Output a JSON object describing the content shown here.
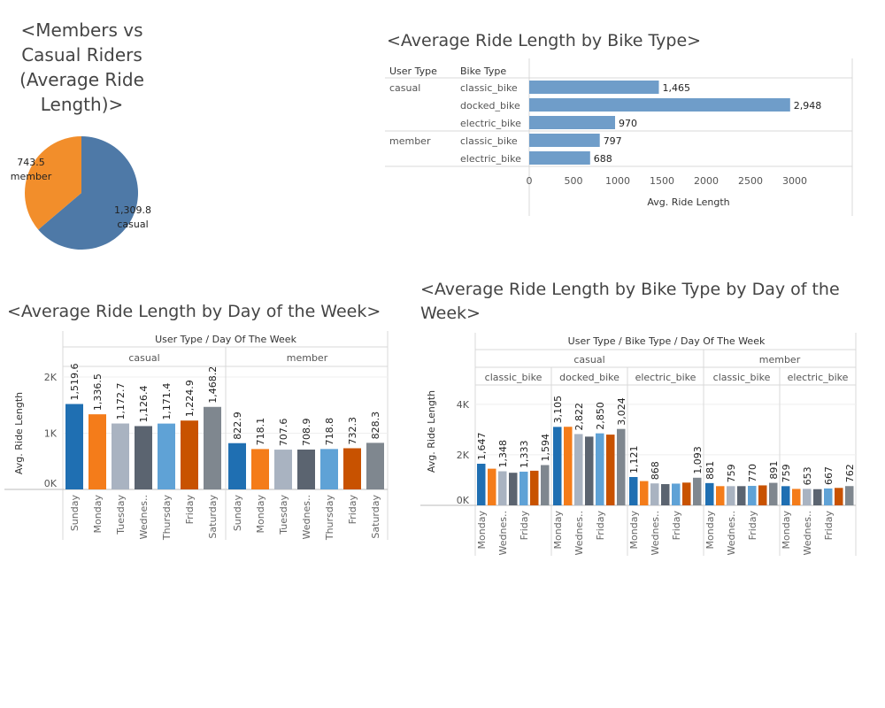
{
  "pie": {
    "title": "<Members vs Casual Riders (Average Ride Length)>",
    "chart_data": {
      "type": "pie",
      "slices": [
        {
          "label": "casual",
          "value": 1309.8,
          "value_label": "1,309.8",
          "color": "#4e79a7"
        },
        {
          "label": "member",
          "value": 743.5,
          "value_label": "743.5",
          "color": "#f28e2b"
        }
      ]
    }
  },
  "bike": {
    "title": "<Average Ride Length by Bike Type>",
    "header_user": "User Type",
    "header_bike": "Bike Type",
    "xlabel": "Avg. Ride Length",
    "chart_data": {
      "type": "bar",
      "orientation": "horizontal",
      "xlim": [
        0,
        3500
      ],
      "ticks": [
        "0",
        "500",
        "1000",
        "1500",
        "2000",
        "2500",
        "3000"
      ],
      "tick_values": [
        0,
        500,
        1000,
        1500,
        2000,
        2500,
        3000
      ],
      "groups": [
        {
          "user": "casual",
          "rows": [
            {
              "bike": "classic_bike",
              "value": 1465,
              "label": "1,465"
            },
            {
              "bike": "docked_bike",
              "value": 2948,
              "label": "2,948"
            },
            {
              "bike": "electric_bike",
              "value": 970,
              "label": "970"
            }
          ]
        },
        {
          "user": "member",
          "rows": [
            {
              "bike": "classic_bike",
              "value": 797,
              "label": "797"
            },
            {
              "bike": "electric_bike",
              "value": 688,
              "label": "688"
            }
          ]
        }
      ],
      "bar_color": "#6f9dc9"
    }
  },
  "dow": {
    "title": "<Average Ride Length by Day of the Week>",
    "header": "User Type  /  Day Of The Week",
    "ylabel": "Avg. Ride Length",
    "chart_data": {
      "type": "bar",
      "ylim": [
        0,
        2000
      ],
      "ticks": [
        "0K",
        "1K",
        "2K"
      ],
      "tick_values": [
        0,
        1000,
        2000
      ],
      "days": [
        "Sunday",
        "Monday",
        "Tuesday",
        "Wednes..",
        "Thursday",
        "Friday",
        "Saturday"
      ],
      "colors": [
        "#1f6fb2",
        "#f47c1a",
        "#a9b3c1",
        "#5b6470",
        "#5fa2d6",
        "#c85200",
        "#7f878f"
      ],
      "groups": [
        {
          "name": "casual",
          "values": [
            1519.6,
            1336.5,
            1172.7,
            1126.4,
            1171.4,
            1224.9,
            1468.2
          ],
          "labels": [
            "1,519.6",
            "1,336.5",
            "1,172.7",
            "1,126.4",
            "1,171.4",
            "1,224.9",
            "1,468.2"
          ]
        },
        {
          "name": "member",
          "values": [
            822.9,
            718.1,
            707.6,
            708.9,
            718.8,
            732.3,
            828.3
          ],
          "labels": [
            "822.9",
            "718.1",
            "707.6",
            "708.9",
            "718.8",
            "732.3",
            "828.3"
          ]
        }
      ]
    }
  },
  "bbd": {
    "title": "<Average Ride Length by Bike Type by Day of the Week>",
    "header": "User Type  /  Bike Type  /  Day Of The Week",
    "ylabel": "Avg. Ride Length",
    "chart_data": {
      "type": "bar",
      "ylim": [
        0,
        4800
      ],
      "ticks": [
        "0K",
        "2K",
        "4K"
      ],
      "tick_values": [
        0,
        2000,
        4000
      ],
      "colors": [
        "#1f6fb2",
        "#f47c1a",
        "#a9b3c1",
        "#5b6470",
        "#5fa2d6",
        "#c85200",
        "#7f878f"
      ],
      "x_axis_labels": [
        "Monday",
        "Wednes..",
        "Friday"
      ],
      "user_types": [
        {
          "name": "casual",
          "bikes": [
            {
              "name": "classic_bike",
              "values": [
                1647,
                1450,
                1348,
                1290,
                1333,
                1370,
                1594
              ],
              "labels": [
                "1,647",
                "",
                "1,348",
                "",
                "1,333",
                "",
                "1,594"
              ]
            },
            {
              "name": "docked_bike",
              "values": [
                3105,
                3110,
                2822,
                2720,
                2850,
                2800,
                3024
              ],
              "labels": [
                "3,105",
                "",
                "2,822",
                "",
                "2,850",
                "",
                "3,024"
              ]
            },
            {
              "name": "electric_bike",
              "values": [
                1121,
                960,
                868,
                840,
                860,
                900,
                1093
              ],
              "labels": [
                "1,121",
                "",
                "868",
                "",
                "",
                "",
                "1,093"
              ]
            }
          ]
        },
        {
          "name": "member",
          "bikes": [
            {
              "name": "classic_bike",
              "values": [
                881,
                760,
                759,
                760,
                770,
                790,
                891
              ],
              "labels": [
                "881",
                "",
                "759",
                "",
                "770",
                "",
                "891"
              ]
            },
            {
              "name": "electric_bike",
              "values": [
                759,
                650,
                653,
                640,
                667,
                690,
                762
              ],
              "labels": [
                "759",
                "",
                "653",
                "",
                "667",
                "",
                "762"
              ]
            }
          ]
        }
      ]
    }
  }
}
